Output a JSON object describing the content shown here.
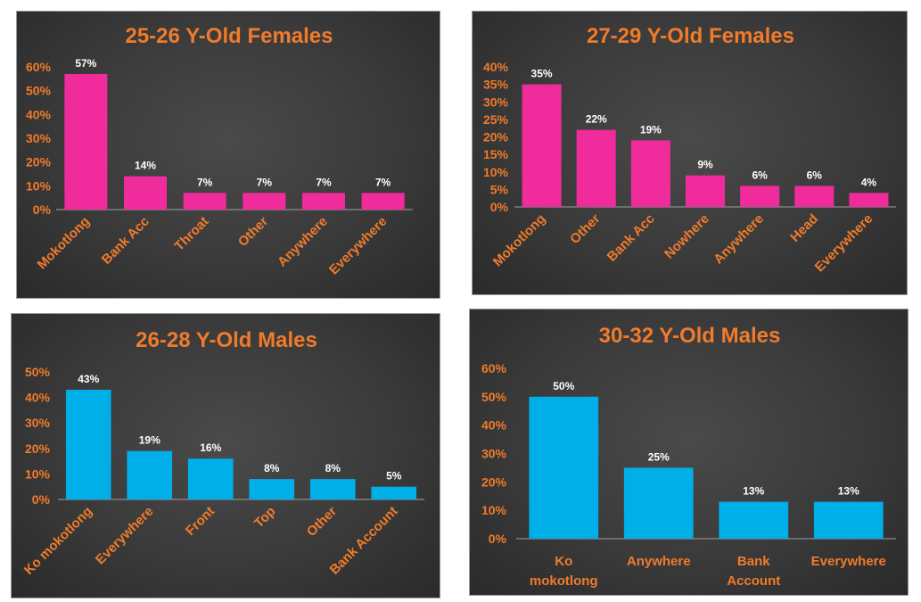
{
  "colors": {
    "female": "#f02b9c",
    "male": "#00aee8",
    "text": "#f07b2b",
    "label": "#ffffff"
  },
  "chart_data": [
    {
      "type": "bar",
      "title": "25-26 Y-Old Females",
      "categories": [
        "Mokotlong",
        "Bank Acc",
        "Throat",
        "Other",
        "Anywhere",
        "Everywhere"
      ],
      "values": [
        57,
        14,
        7,
        7,
        7,
        7
      ],
      "value_labels": [
        "57%",
        "14%",
        "7%",
        "7%",
        "7%",
        "7%"
      ],
      "yticks": [
        "0%",
        "10%",
        "20%",
        "30%",
        "40%",
        "50%",
        "60%"
      ],
      "ylim": [
        0,
        60
      ],
      "color": "#f02b9c",
      "label_style": "rotated",
      "grid": false
    },
    {
      "type": "bar",
      "title": "27-29 Y-Old Females",
      "categories": [
        "Mokotlong",
        "Other",
        "Bank Acc",
        "Nowhere",
        "Anywhere",
        "Head",
        "Everywhere"
      ],
      "values": [
        35,
        22,
        19,
        9,
        6,
        6,
        4
      ],
      "value_labels": [
        "35%",
        "22%",
        "19%",
        "9%",
        "6%",
        "6%",
        "4%"
      ],
      "yticks": [
        "0%",
        "5%",
        "10%",
        "15%",
        "20%",
        "25%",
        "30%",
        "35%",
        "40%"
      ],
      "ylim": [
        0,
        40
      ],
      "color": "#f02b9c",
      "label_style": "rotated",
      "grid": false
    },
    {
      "type": "bar",
      "title": "26-28 Y-Old Males",
      "categories": [
        "Ko mokotlong",
        "Everywhere",
        "Front",
        "Top",
        "Other",
        "Bank Account"
      ],
      "values": [
        43,
        19,
        16,
        8,
        8,
        5
      ],
      "value_labels": [
        "43%",
        "19%",
        "16%",
        "8%",
        "8%",
        "5%"
      ],
      "yticks": [
        "0%",
        "10%",
        "20%",
        "30%",
        "40%",
        "50%"
      ],
      "ylim": [
        0,
        50
      ],
      "color": "#00aee8",
      "label_style": "rotated",
      "grid": false
    },
    {
      "type": "bar",
      "title": "30-32 Y-Old Males",
      "categories": [
        [
          "Ko",
          "mokotlong"
        ],
        [
          "Anywhere"
        ],
        [
          "Bank",
          "Account"
        ],
        [
          "Everywhere"
        ]
      ],
      "values": [
        50,
        25,
        13,
        13
      ],
      "value_labels": [
        "50%",
        "25%",
        "13%",
        "13%"
      ],
      "yticks": [
        "0%",
        "10%",
        "20%",
        "30%",
        "40%",
        "50%",
        "60%"
      ],
      "ylim": [
        0,
        60
      ],
      "color": "#00aee8",
      "label_style": "horizontal",
      "grid": false
    }
  ]
}
